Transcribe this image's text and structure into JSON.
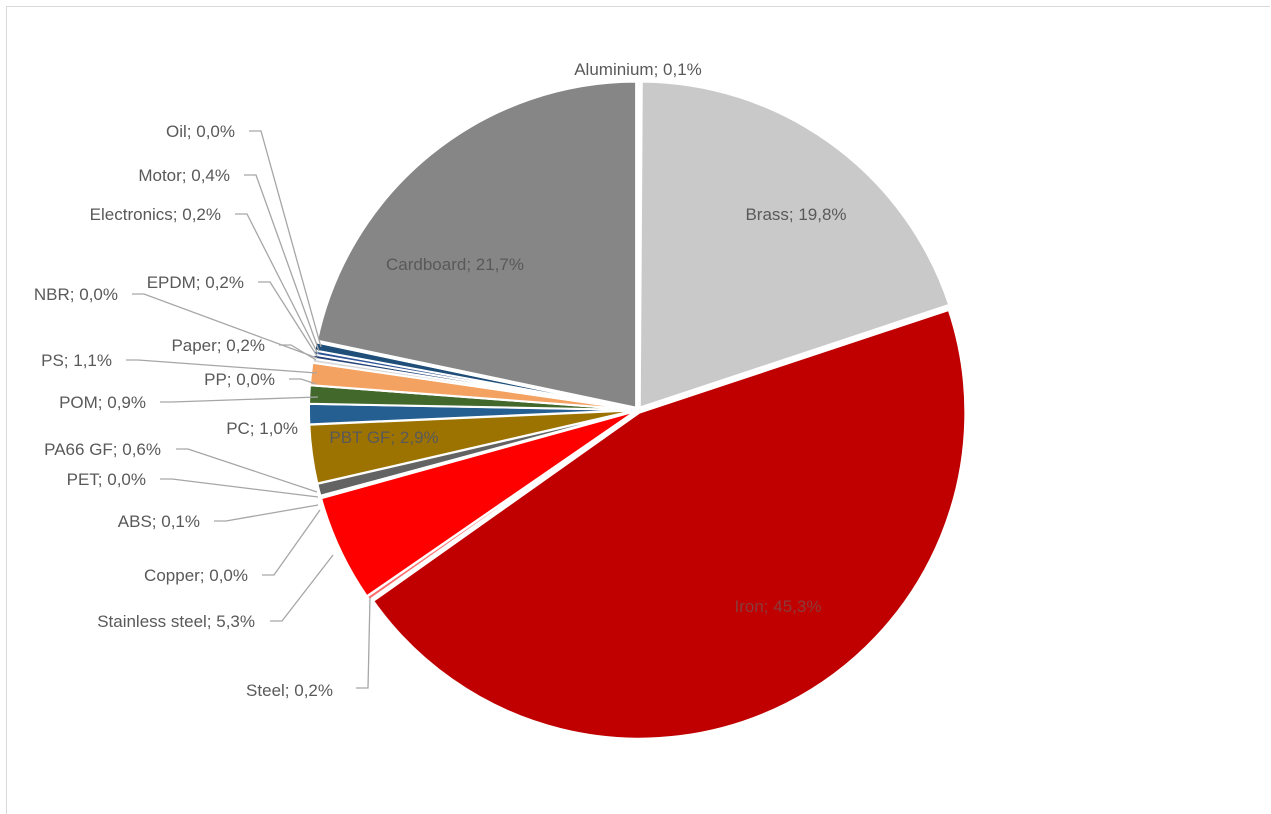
{
  "chart_data": {
    "type": "pie",
    "title": "",
    "legend": "none",
    "slices": [
      {
        "name": "Aluminium",
        "value": 0.1,
        "label": "Aluminium; 0,1%",
        "color": "#4472c4"
      },
      {
        "name": "Brass",
        "value": 19.8,
        "label": "Brass; 19,8%",
        "color": "#c9c9c9"
      },
      {
        "name": "Iron",
        "value": 45.3,
        "label": "Iron; 45,3%",
        "color": "#c00000"
      },
      {
        "name": "Steel",
        "value": 0.2,
        "label": "Steel; 0,2%",
        "color": "#ff6b6b"
      },
      {
        "name": "Stainless steel",
        "value": 5.3,
        "label": "Stainless steel; 5,3%",
        "color": "#ff0000"
      },
      {
        "name": "Copper",
        "value": 0.0,
        "label": "Copper; 0,0%",
        "color": "#b87333"
      },
      {
        "name": "ABS",
        "value": 0.1,
        "label": "ABS; 0,1%",
        "color": "#a6a6a6"
      },
      {
        "name": "PET",
        "value": 0.0,
        "label": "PET; 0,0%",
        "color": "#7f7f7f"
      },
      {
        "name": "PA66 GF",
        "value": 0.6,
        "label": "PA66 GF; 0,6%",
        "color": "#636363"
      },
      {
        "name": "PBT GF",
        "value": 2.9,
        "label": "PBT GF; 2,9%",
        "color": "#9c7300"
      },
      {
        "name": "PC",
        "value": 1.0,
        "label": "PC; 1,0%",
        "color": "#255e91"
      },
      {
        "name": "POM",
        "value": 0.9,
        "label": "POM; 0,9%",
        "color": "#43682b"
      },
      {
        "name": "PP",
        "value": 0.0,
        "label": "PP; 0,0%",
        "color": "#8faadc"
      },
      {
        "name": "PS",
        "value": 1.1,
        "label": "PS; 1,1%",
        "color": "#f4a261"
      },
      {
        "name": "Paper",
        "value": 0.2,
        "label": "Paper; 0,2%",
        "color": "#d9d9d9"
      },
      {
        "name": "NBR",
        "value": 0.0,
        "label": "NBR; 0,0%",
        "color": "#70ad47"
      },
      {
        "name": "EPDM",
        "value": 0.2,
        "label": "EPDM; 0,2%",
        "color": "#264478"
      },
      {
        "name": "Electronics",
        "value": 0.2,
        "label": "Electronics; 0,2%",
        "color": "#2f5597"
      },
      {
        "name": "Motor",
        "value": 0.4,
        "label": "Motor; 0,4%",
        "color": "#1f4e79"
      },
      {
        "name": "Oil",
        "value": 0.0,
        "label": "Oil; 0,0%",
        "color": "#bfbfbf"
      },
      {
        "name": "Cardboard",
        "value": 21.7,
        "label": "Cardboard; 21,7%",
        "color": "#868686"
      }
    ]
  }
}
